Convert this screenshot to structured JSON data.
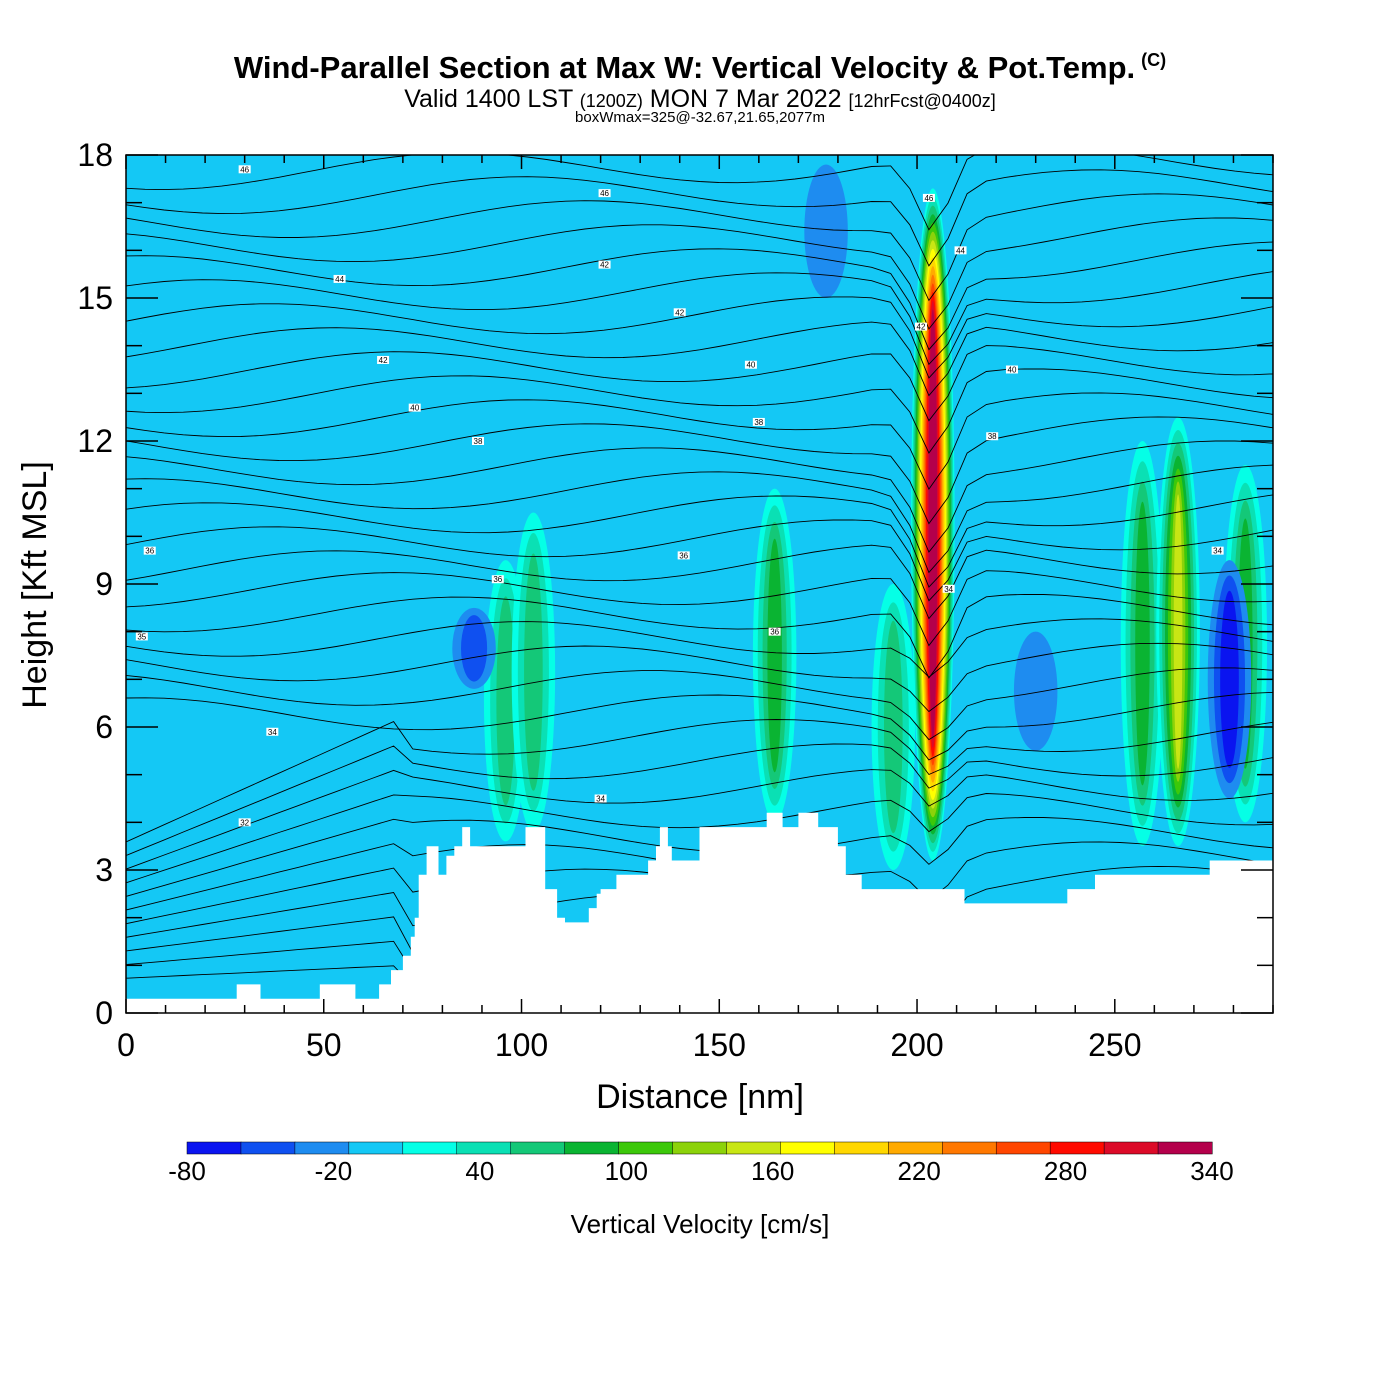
{
  "title": "Wind-Parallel Section at Max W: Vertical Velocity & Pot.Temp.",
  "copyright": "(C)",
  "subtitle_main": "Valid 1400 LST",
  "subtitle_utc": "(1200Z)",
  "subtitle_date": "MON 7 Mar 2022",
  "subtitle_fcst": "[12hrFcst@0400z]",
  "subtitle2": "boxWmax=325@-32.67,21.65,2077m",
  "chart_data": {
    "type": "heatmap",
    "xlabel": "Distance [nm]",
    "ylabel": "Height [Kft MSL]",
    "xlim": [
      0,
      290
    ],
    "ylim": [
      0,
      18
    ],
    "x_ticks": [
      "0",
      "50",
      "100",
      "150",
      "200",
      "250"
    ],
    "y_ticks": [
      "0",
      "3",
      "6",
      "9",
      "12",
      "15",
      "18"
    ],
    "colorbar": {
      "label": "Vertical Velocity [cm/s]",
      "tick_labels": [
        "-80",
        "-20",
        "40",
        "100",
        "160",
        "220",
        "280",
        "340"
      ],
      "min": -80,
      "max": 340,
      "step": 20,
      "colors": [
        "#0a14f0",
        "#0f50f0",
        "#1e8cf0",
        "#14c8f5",
        "#05ffe6",
        "#0ae0b4",
        "#14c878",
        "#0ab432",
        "#3cc80a",
        "#8cd20a",
        "#c8e614",
        "#ffff00",
        "#ffd700",
        "#ffaa00",
        "#ff7800",
        "#ff4600",
        "#ff0a00",
        "#dc0a28",
        "#b4004b"
      ]
    },
    "background_w": -10,
    "features": [
      {
        "name": "updraft-core",
        "x": 204,
        "y_bottom": 3.2,
        "y_top": 17.3,
        "w_max": 325
      },
      {
        "name": "updraft-east-1",
        "x": 257,
        "y_bottom": 3.5,
        "y_top": 12.0,
        "w_max": 60
      },
      {
        "name": "updraft-east-2",
        "x": 266,
        "y_bottom": 3.5,
        "y_top": 12.5,
        "w_max": 130
      },
      {
        "name": "updraft-east-3",
        "x": 283,
        "y_bottom": 4.0,
        "y_top": 11.5,
        "w_max": 60
      },
      {
        "name": "updraft-west-1",
        "x": 96,
        "y_bottom": 3.6,
        "y_top": 9.5,
        "w_max": 55
      },
      {
        "name": "updraft-west-2",
        "x": 103,
        "y_bottom": 3.8,
        "y_top": 10.5,
        "w_max": 50
      },
      {
        "name": "updraft-mid",
        "x": 164,
        "y_bottom": 4.0,
        "y_top": 11.0,
        "w_max": 65
      },
      {
        "name": "updraft-left-of-core",
        "x": 194,
        "y_bottom": 3.0,
        "y_top": 9.0,
        "w_max": 55
      },
      {
        "name": "downdraft-east",
        "x": 279,
        "y_bottom": 4.5,
        "y_top": 9.5,
        "w_max": -70
      },
      {
        "name": "downdraft-west",
        "x": 88,
        "y_bottom": 6.8,
        "y_top": 8.5,
        "w_max": -40
      },
      {
        "name": "downdraft-mid",
        "x": 230,
        "y_bottom": 5.5,
        "y_top": 8.0,
        "w_max": -30
      },
      {
        "name": "downdraft-upper",
        "x": 177,
        "y_bottom": 15.0,
        "y_top": 17.8,
        "w_max": -30
      }
    ],
    "terrain": {
      "x": [
        0,
        28,
        34,
        49,
        58,
        64,
        67,
        70,
        72,
        73,
        74,
        76,
        79,
        81,
        83,
        85,
        87,
        91,
        92,
        94,
        96,
        98,
        101,
        102,
        104,
        106,
        108,
        109,
        111,
        112,
        117,
        118,
        119,
        120,
        123,
        124,
        126,
        131,
        132,
        134,
        135,
        137,
        138,
        140,
        142,
        144,
        145,
        151,
        155,
        161,
        162,
        165,
        166,
        169,
        170,
        174,
        175,
        180,
        182,
        184,
        186,
        211,
        212,
        237,
        238,
        244,
        245,
        273,
        274,
        290
      ],
      "y": [
        0.3,
        0.6,
        0.3,
        0.6,
        0.3,
        0.6,
        0.9,
        1.2,
        1.6,
        2.0,
        2.9,
        3.5,
        2.9,
        3.3,
        3.5,
        3.9,
        3.5,
        3.5,
        3.5,
        3.5,
        3.5,
        3.5,
        3.9,
        3.9,
        3.9,
        2.6,
        2.6,
        2.0,
        1.9,
        1.9,
        2.2,
        2.2,
        2.5,
        2.6,
        2.6,
        2.9,
        2.9,
        2.9,
        3.2,
        3.5,
        3.9,
        3.5,
        3.2,
        3.2,
        3.2,
        3.2,
        3.9,
        3.9,
        3.9,
        3.9,
        4.2,
        4.2,
        3.9,
        3.9,
        4.2,
        4.2,
        3.9,
        3.5,
        2.9,
        2.9,
        2.6,
        2.6,
        2.3,
        2.3,
        2.6,
        2.6,
        2.9,
        2.9,
        3.2,
        3.2
      ]
    },
    "contour_labels": [
      {
        "x": 30,
        "y": 17.7,
        "text": "46"
      },
      {
        "x": 121,
        "y": 17.2,
        "text": "46"
      },
      {
        "x": 203,
        "y": 17.1,
        "text": "46"
      },
      {
        "x": 211,
        "y": 16.0,
        "text": "44"
      },
      {
        "x": 54,
        "y": 15.4,
        "text": "44"
      },
      {
        "x": 121,
        "y": 15.7,
        "text": "42"
      },
      {
        "x": 140,
        "y": 14.7,
        "text": "42"
      },
      {
        "x": 201,
        "y": 14.4,
        "text": "42"
      },
      {
        "x": 65,
        "y": 13.7,
        "text": "42"
      },
      {
        "x": 158,
        "y": 13.6,
        "text": "40"
      },
      {
        "x": 224,
        "y": 13.5,
        "text": "40"
      },
      {
        "x": 73,
        "y": 12.7,
        "text": "40"
      },
      {
        "x": 160,
        "y": 12.4,
        "text": "38"
      },
      {
        "x": 219,
        "y": 12.1,
        "text": "38"
      },
      {
        "x": 89,
        "y": 12.0,
        "text": "38"
      },
      {
        "x": 6,
        "y": 9.7,
        "text": "36"
      },
      {
        "x": 141,
        "y": 9.6,
        "text": "36"
      },
      {
        "x": 94,
        "y": 9.1,
        "text": "36"
      },
      {
        "x": 276,
        "y": 9.7,
        "text": "34"
      },
      {
        "x": 208,
        "y": 8.9,
        "text": "34"
      },
      {
        "x": 4,
        "y": 7.9,
        "text": "35"
      },
      {
        "x": 164,
        "y": 8.0,
        "text": "36"
      },
      {
        "x": 37,
        "y": 5.9,
        "text": "34"
      },
      {
        "x": 120,
        "y": 4.5,
        "text": "34"
      },
      {
        "x": 30,
        "y": 4.0,
        "text": "32"
      }
    ]
  }
}
